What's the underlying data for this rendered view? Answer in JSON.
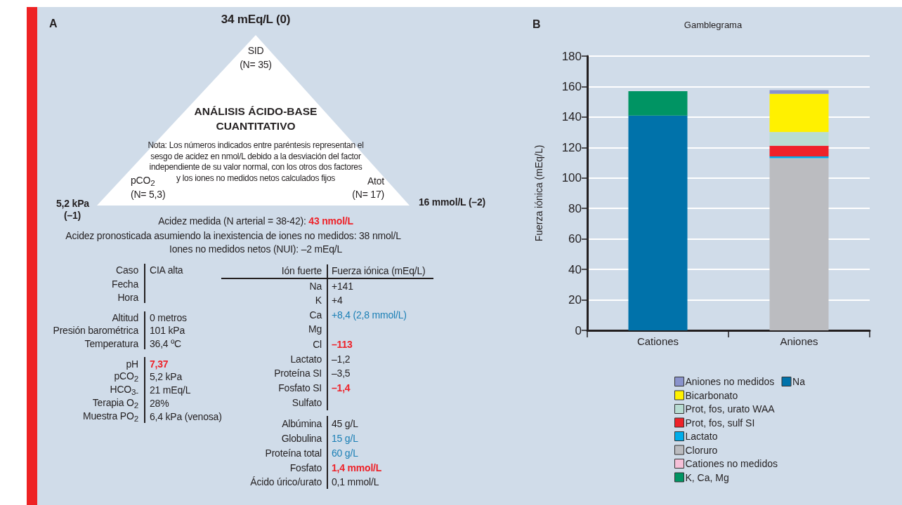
{
  "chart_data": [
    {
      "type": "other",
      "title": "ANÁLISIS ÁCIDO-BASE CUANTITATIVO",
      "annotations": [
        "A",
        "34 mEq/L (0)",
        "SID",
        "(N= 35)",
        "Nota: Los números indicados entre paréntesis representan el sesgo de acidez en nmol/L debido a la desviación del factor independiente de su valor normal, con los otros dos factores y los iones no medidos netos calculados fijos",
        "pCO$_{2}$",
        "(N= 5,3)",
        "Atot",
        "(N= 17)",
        "5,2 kPa",
        "(–1)",
        "16 mmol/L (–2)",
        "Acidez medida (N arterial = 38-42): ",
        "43 nmol/L",
        "Acidez pronosticada asumiendo la inexistencia de iones no medidos: 38 nmol/L",
        "Iones no medidos netos (NUI): –2 mEq/L",
        "Caso",
        "CIA alta",
        "Fecha",
        "Hora",
        "Altitud",
        "0 metros",
        "Presión barométrica",
        "101 kPa",
        "Temperatura",
        "36,4 ºC",
        "pH",
        "7,37",
        "pCO$_{2}$",
        "5,2 kPa",
        "HCO$_{3-}$",
        "21 mEq/L",
        "Terapia O$_{2}$",
        "28%",
        "Muestra PO$_{2}$",
        "6,4 kPa (venosa)",
        "Ión fuerte",
        "Fuerza iónica (mEq/L)",
        "Na",
        "+141",
        "K",
        "+4",
        "Ca",
        "+8,4 (2,8 mmol/L)",
        "Mg",
        "Cl",
        "–113",
        "Lactato",
        "–1,2",
        "Proteína SI",
        "–3,5",
        "Fosfato SI",
        "–1,4",
        "Sulfato",
        "Albúmina",
        "45 g/L",
        "Globulina",
        "15 g/L",
        "Proteína total",
        "60 g/L",
        "Fosfato",
        "1,4 mmol/L",
        "Ácido úrico/urato",
        "0,1 mmol/L"
      ]
    },
    {
      "type": "bar",
      "title": "Gamblegrama",
      "annotations": [
        "B"
      ],
      "categories": [
        "Cationes",
        "Aniones"
      ],
      "ylabel": "Fuerza iónica (mEq/L)",
      "ylim": [
        0,
        180
      ],
      "yticks": [
        0,
        20,
        40,
        60,
        80,
        100,
        120,
        140,
        160,
        180
      ],
      "stacked": true,
      "grid": "y",
      "legend": "bottom",
      "series": [
        {
          "name": "Na",
          "color": "#0072aa",
          "values": [
            141,
            null
          ]
        },
        {
          "name": "K, Ca, Mg",
          "color": "#009463",
          "values": [
            16,
            null
          ]
        },
        {
          "name": "Cationes no medidos",
          "color": "#f5c0d8",
          "values": [
            null,
            null
          ]
        },
        {
          "name": "Cloruro",
          "color": "#bbbcc0",
          "values": [
            null,
            113
          ]
        },
        {
          "name": "Lactato",
          "color": "#00adea",
          "values": [
            null,
            1.2
          ]
        },
        {
          "name": "Prot, fos, sulf SI",
          "color": "#ee2229",
          "values": [
            null,
            7
          ]
        },
        {
          "name": "Prot, fos, urato WAA",
          "color": "#b8dcd2",
          "values": [
            null,
            9
          ]
        },
        {
          "name": "Bicarbonato",
          "color": "#fff100",
          "values": [
            null,
            25
          ]
        },
        {
          "name": "Aniones no medidos",
          "color": "#8a93cc",
          "values": [
            null,
            2.5
          ]
        }
      ]
    }
  ]
}
